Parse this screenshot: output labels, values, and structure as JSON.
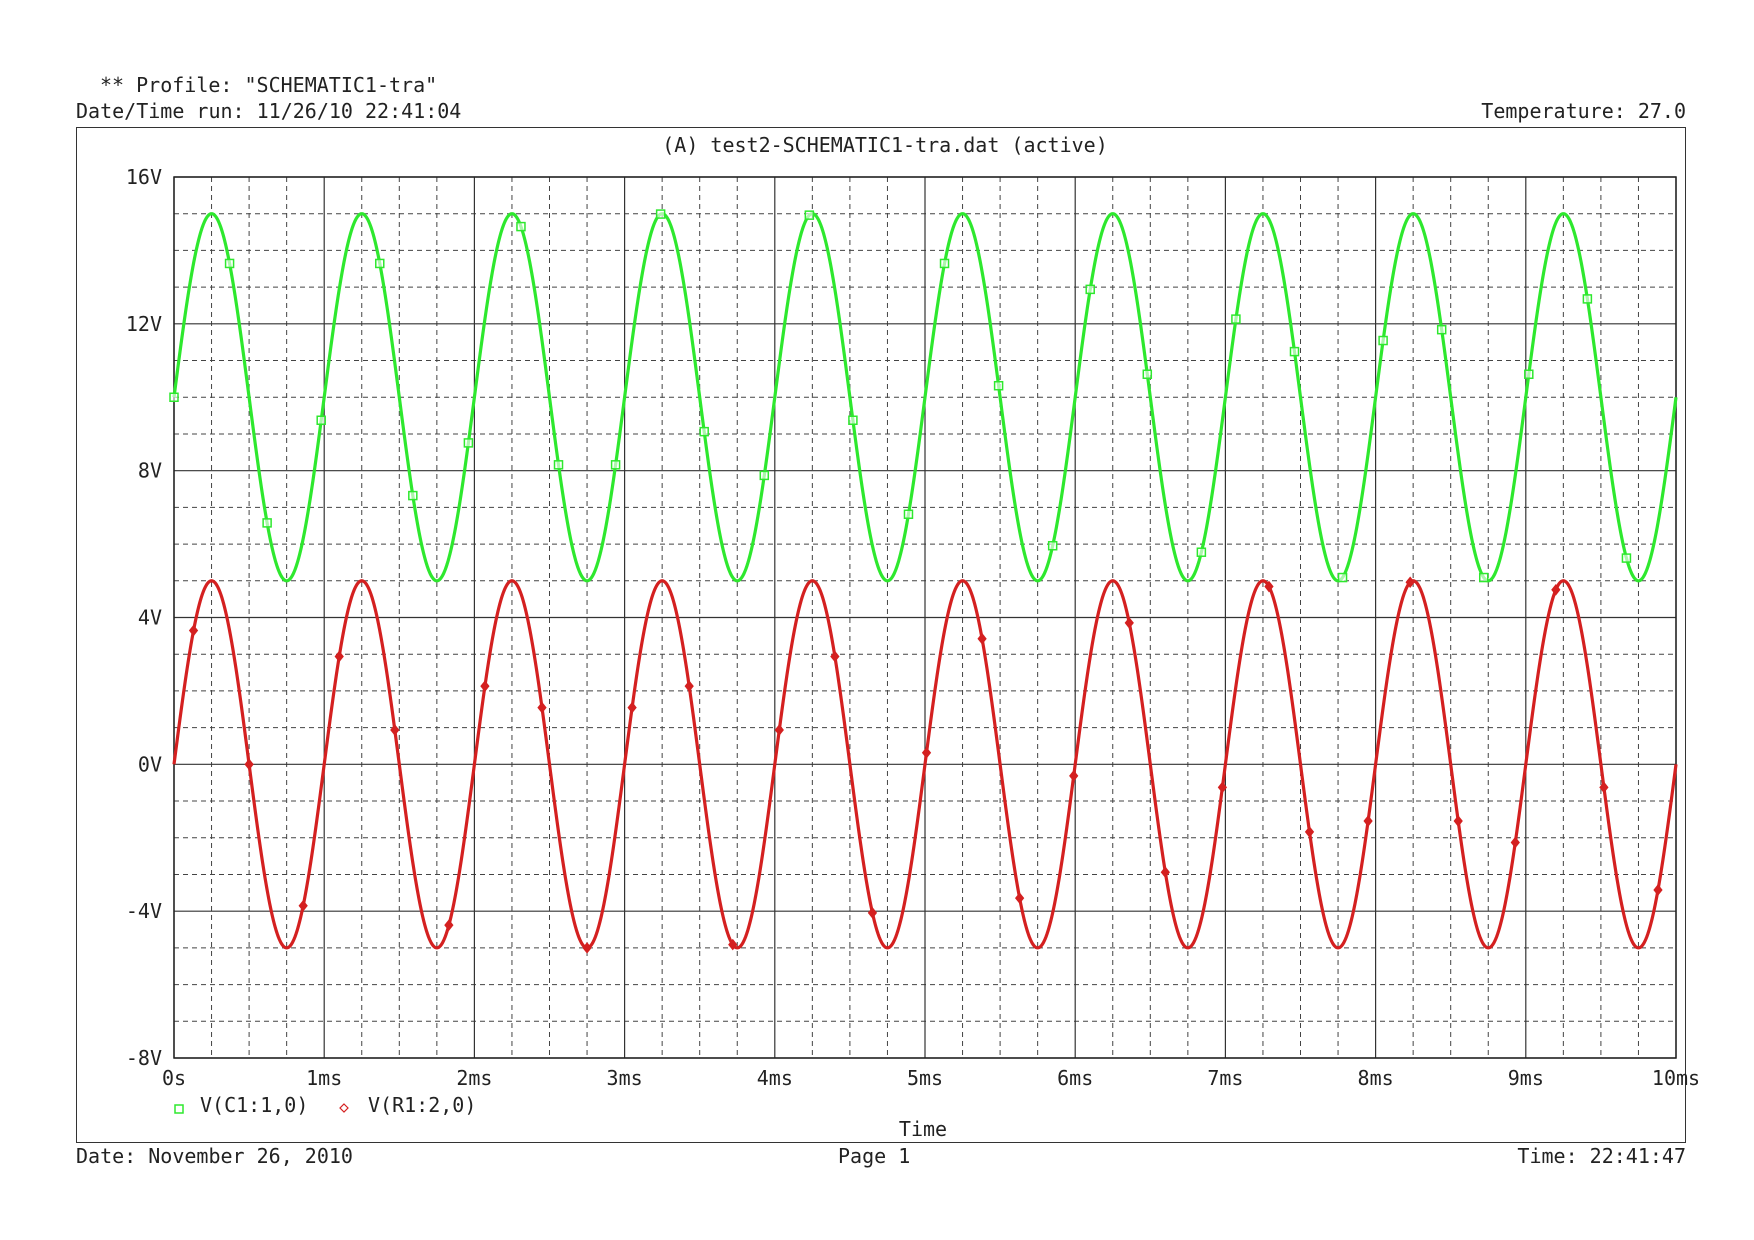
{
  "header": {
    "profile": "** Profile: \"SCHEMATIC1-tra\"",
    "datetime_run": "Date/Time run: 11/26/10 22:41:04",
    "temperature": "Temperature: 27.0"
  },
  "footer": {
    "date": "Date: November 26, 2010",
    "page": "Page 1",
    "time": "Time: 22:41:47"
  },
  "chart_data": {
    "type": "line",
    "title": "(A) test2-SCHEMATIC1-tra.dat (active)",
    "xlabel": "Time",
    "ylabel": "",
    "xlim": [
      0,
      10
    ],
    "ylim": [
      -8,
      16
    ],
    "x_unit": "ms",
    "x_ticks": [
      "0s",
      "1ms",
      "2ms",
      "3ms",
      "4ms",
      "5ms",
      "6ms",
      "7ms",
      "8ms",
      "9ms",
      "10ms"
    ],
    "y_ticks": [
      "16V",
      "12V",
      "8V",
      "4V",
      "0V",
      "-4V",
      "-8V"
    ],
    "y_tick_values": [
      16,
      12,
      8,
      4,
      0,
      -4,
      -8
    ],
    "grid": true,
    "legend_position": "bottom-left",
    "series": [
      {
        "name": "V(C1:1,0)",
        "color": "#2ee82e",
        "marker": "square",
        "x": [
          0.0,
          0.25,
          0.5,
          0.75,
          1.0,
          1.25,
          1.5,
          1.75,
          2.0,
          2.25,
          2.5,
          2.75,
          3.0,
          3.25,
          3.5,
          3.75,
          4.0,
          4.25,
          4.5,
          4.75,
          5.0,
          5.25,
          5.5,
          5.75,
          6.0,
          6.25,
          6.5,
          6.75,
          7.0,
          7.25,
          7.5,
          7.75,
          8.0,
          8.25,
          8.5,
          8.75,
          9.0,
          9.25,
          9.5,
          9.75,
          10.0
        ],
        "values": [
          10,
          15,
          10,
          5,
          10,
          15,
          10,
          5,
          10,
          15,
          10,
          5,
          10,
          15,
          10,
          5,
          10,
          15,
          10,
          5,
          10,
          15,
          10,
          5,
          10,
          15,
          10,
          5,
          10,
          15,
          10,
          5,
          10,
          15,
          10,
          5,
          10,
          15,
          10,
          5,
          10
        ]
      },
      {
        "name": "V(R1:2,0)",
        "color": "#d42020",
        "marker": "diamond",
        "x": [
          0.0,
          0.25,
          0.5,
          0.75,
          1.0,
          1.25,
          1.5,
          1.75,
          2.0,
          2.25,
          2.5,
          2.75,
          3.0,
          3.25,
          3.5,
          3.75,
          4.0,
          4.25,
          4.5,
          4.75,
          5.0,
          5.25,
          5.5,
          5.75,
          6.0,
          6.25,
          6.5,
          6.75,
          7.0,
          7.25,
          7.5,
          7.75,
          8.0,
          8.25,
          8.5,
          8.75,
          9.0,
          9.25,
          9.5,
          9.75,
          10.0
        ],
        "values": [
          0,
          5,
          0,
          -5,
          0,
          5,
          0,
          -5,
          0,
          5,
          0,
          -5,
          0,
          5,
          0,
          -5,
          0,
          5,
          0,
          -5,
          0,
          5,
          0,
          -5,
          0,
          5,
          0,
          -5,
          0,
          5,
          0,
          -5,
          0,
          5,
          0,
          -5,
          0,
          5,
          0,
          -5,
          0
        ]
      }
    ],
    "green_marker_x": [
      0.0,
      0.37,
      0.62,
      0.98,
      1.37,
      1.59,
      1.96,
      2.31,
      2.56,
      2.94,
      3.24,
      3.53,
      3.93,
      4.23,
      4.52,
      4.89,
      5.13,
      5.49,
      5.85,
      6.1,
      6.48,
      6.84,
      7.07,
      7.46,
      7.78,
      8.05,
      8.44,
      8.72,
      9.02,
      9.41,
      9.67
    ],
    "red_marker_x": [
      0.13,
      0.5,
      0.86,
      1.1,
      1.47,
      1.83,
      2.07,
      2.45,
      2.75,
      3.05,
      3.43,
      3.72,
      4.03,
      4.4,
      4.65,
      5.01,
      5.38,
      5.63,
      5.99,
      6.36,
      6.6,
      6.98,
      7.29,
      7.56,
      7.95,
      8.23,
      8.55,
      8.93,
      9.2,
      9.52,
      9.88
    ]
  }
}
